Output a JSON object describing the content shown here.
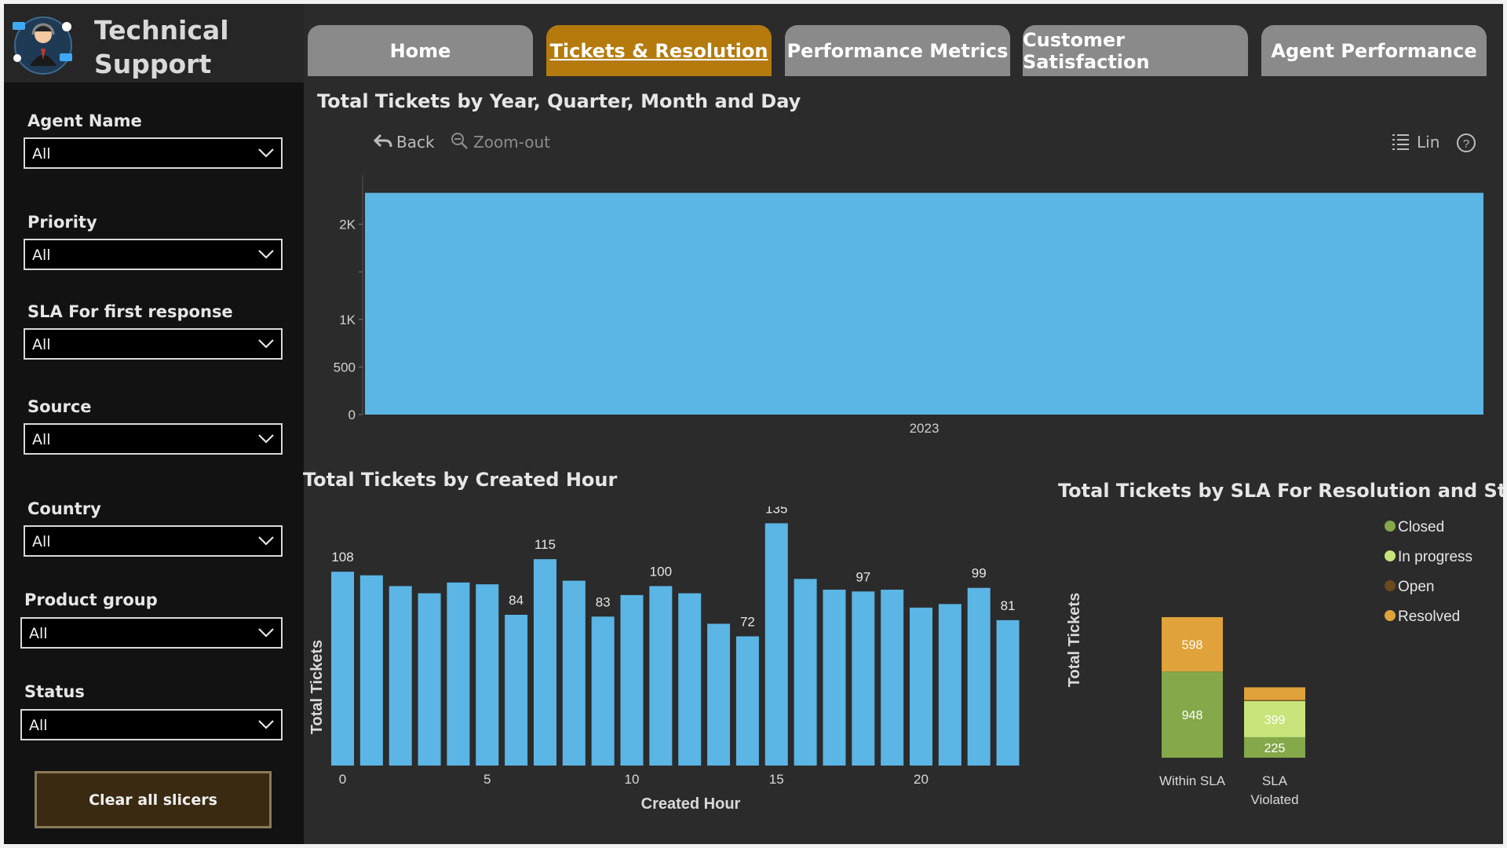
{
  "header": {
    "title_line1": "Technical",
    "title_line2": "Support"
  },
  "tabs": [
    {
      "label": "Home",
      "active": false
    },
    {
      "label": "Tickets & Resolution",
      "active": true
    },
    {
      "label": "Performance Metrics",
      "active": false
    },
    {
      "label": "Customer Satisfaction",
      "active": false
    },
    {
      "label": "Agent Performance",
      "active": false
    }
  ],
  "sidebar": {
    "slicers": [
      {
        "label": "Agent Name",
        "value": "All"
      },
      {
        "label": "Priority",
        "value": "All"
      },
      {
        "label": "SLA For first response",
        "value": "All"
      },
      {
        "label": "Source",
        "value": "All"
      },
      {
        "label": "Country",
        "value": "All"
      },
      {
        "label": "Product group",
        "value": "All"
      },
      {
        "label": "Status",
        "value": "All"
      }
    ],
    "clear_label": "Clear all slicers",
    "chevron_icon": "chevron-down-icon"
  },
  "toolbar": {
    "back_label": "Back",
    "zoomout_label": "Zoom-out",
    "lin_label": "Lin",
    "icons": [
      "back-arrow-icon",
      "zoom-out-icon",
      "list-icon",
      "help-icon"
    ]
  },
  "colors": {
    "bar": "#5bb5e5",
    "active_tab": "#b57a0d",
    "closed": "#84a84a",
    "in_progress": "#c8e47a",
    "open": "#6b4a1f",
    "resolved": "#e0a23a"
  },
  "chart_data": [
    {
      "type": "bar",
      "title": "Total Tickets by Year, Quarter, Month and Day",
      "categories": [
        "2023"
      ],
      "values": [
        2330
      ],
      "ylim": [
        0,
        2500
      ],
      "yticks": [
        0,
        500,
        1000,
        2000
      ],
      "ytick_labels": [
        "0",
        "500",
        "1K",
        "2K"
      ],
      "xlabel": "",
      "ylabel": "",
      "grid": false
    },
    {
      "type": "bar",
      "title": "Total Tickets by Created Hour",
      "xlabel": "Created Hour",
      "ylabel": "Total Tickets",
      "categories": [
        0,
        1,
        2,
        3,
        4,
        5,
        6,
        7,
        8,
        9,
        10,
        11,
        12,
        13,
        14,
        15,
        16,
        17,
        18,
        19,
        20,
        21,
        22,
        23
      ],
      "values": [
        108,
        106,
        100,
        96,
        102,
        101,
        84,
        115,
        103,
        83,
        95,
        100,
        96,
        79,
        72,
        135,
        104,
        98,
        97,
        98,
        88,
        90,
        99,
        81
      ],
      "data_labels": {
        "0": "108",
        "6": "84",
        "7": "115",
        "9": "83",
        "11": "100",
        "14": "72",
        "15": "135",
        "18": "97",
        "22": "99",
        "23": "81"
      },
      "xticks": [
        0,
        5,
        10,
        15,
        20
      ],
      "ylim": [
        0,
        140
      ],
      "grid": false
    },
    {
      "type": "bar",
      "stacked": true,
      "title": "Total Tickets by SLA For Resolution and Status",
      "xlabel": "",
      "ylabel": "Total Tickets",
      "categories": [
        "Within SLA",
        "SLA Violated"
      ],
      "series": [
        {
          "name": "Closed",
          "values": [
            948,
            225
          ]
        },
        {
          "name": "In progress",
          "values": [
            0,
            399
          ]
        },
        {
          "name": "Open",
          "values": [
            0,
            10
          ]
        },
        {
          "name": "Resolved",
          "values": [
            598,
            140
          ]
        }
      ],
      "data_labels": {
        "Within SLA": {
          "Closed": "948",
          "Resolved": "598"
        },
        "SLA Violated": {
          "Closed": "225",
          "In progress": "399"
        }
      },
      "legend": "top-right"
    }
  ]
}
